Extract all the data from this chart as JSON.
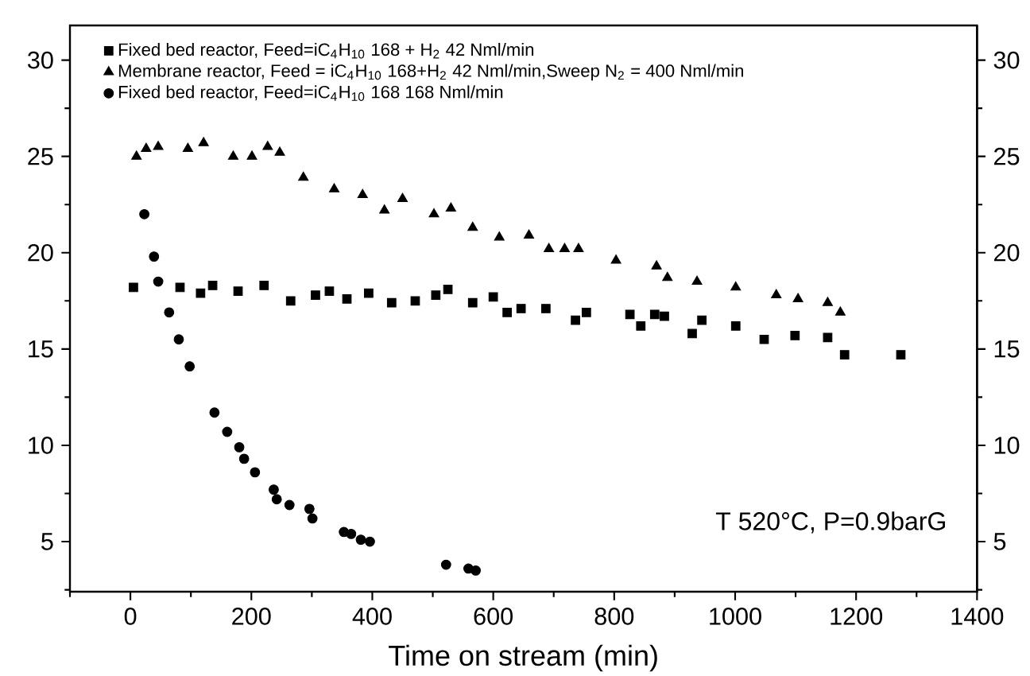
{
  "chart_data": {
    "type": "scatter",
    "xlabel": "Time on stream (min)",
    "xlim": [
      -100,
      1400
    ],
    "ylim": [
      2.4,
      31.8
    ],
    "y2lim": [
      2.4,
      31.8
    ],
    "xticks": [
      {
        "value": -100,
        "label": null
      },
      0,
      {
        "value": 100,
        "label": null
      },
      200,
      {
        "value": 300,
        "label": null
      },
      400,
      {
        "value": 500,
        "label": null
      },
      600,
      {
        "value": 700,
        "label": null
      },
      800,
      {
        "value": 900,
        "label": null
      },
      1000,
      {
        "value": 1100,
        "label": null
      },
      1200,
      {
        "value": 1300,
        "label": null
      },
      1400
    ],
    "yticks": [
      {
        "value": 2.5,
        "label": null
      },
      5,
      {
        "value": 7.5,
        "label": null
      },
      10,
      {
        "value": 12.5,
        "label": null
      },
      15,
      {
        "value": 17.5,
        "label": null
      },
      20,
      {
        "value": 22.5,
        "label": null
      },
      25,
      {
        "value": 27.5,
        "label": null
      },
      30
    ],
    "y2ticks": [
      {
        "value": 2.5,
        "label": null
      },
      5,
      {
        "value": 7.5,
        "label": null
      },
      10,
      {
        "value": 12.5,
        "label": null
      },
      15,
      {
        "value": 17.5,
        "label": null
      },
      20,
      {
        "value": 22.5,
        "label": null
      },
      25,
      {
        "value": 27.5,
        "label": null
      },
      30
    ],
    "legend": "top left",
    "grid": false,
    "annotations": [
      "T 520°C, P=0.9barG"
    ],
    "series": [
      {
        "name": "Fixed bed reactor, Feed=iC$_{4}$H$_{10}$ 168 + H$_{2}$ 42 Nml/min",
        "color": "#000000",
        "marker": "square",
        "x": [
          5,
          82,
          116,
          136,
          178,
          221,
          265,
          306,
          329,
          358,
          394,
          432,
          471,
          505,
          525,
          566,
          600,
          623,
          646,
          687,
          736,
          754,
          826,
          844,
          867,
          883,
          929,
          945,
          1001,
          1048,
          1099,
          1153,
          1181,
          1274
        ],
        "values": [
          18.2,
          18.2,
          17.9,
          18.3,
          18.0,
          18.3,
          17.5,
          17.8,
          18.0,
          17.6,
          17.9,
          17.4,
          17.5,
          17.8,
          18.1,
          17.4,
          17.7,
          16.9,
          17.1,
          17.1,
          16.5,
          16.9,
          16.8,
          16.2,
          16.8,
          16.7,
          15.8,
          16.5,
          16.2,
          15.5,
          15.7,
          15.6,
          14.7,
          14.7
        ]
      },
      {
        "name": "Membrane reactor, Feed = iC$_{4}$H$_{10}$ 168+H$_{2}$ 42 Nml/min,Sweep N$_{2}$ = 400 Nml/min",
        "color": "#000000",
        "marker": "triangle",
        "x": [
          10,
          26,
          46,
          95,
          121,
          170,
          201,
          227,
          247,
          286,
          337,
          384,
          420,
          450,
          502,
          530,
          566,
          610,
          659,
          692,
          718,
          741,
          803,
          870,
          888,
          937,
          1001,
          1068,
          1104,
          1153,
          1174
        ],
        "values": [
          25.0,
          25.4,
          25.5,
          25.4,
          25.7,
          25.0,
          25.0,
          25.5,
          25.2,
          23.9,
          23.3,
          23.0,
          22.2,
          22.8,
          22.0,
          22.3,
          21.3,
          20.8,
          20.9,
          20.2,
          20.2,
          20.2,
          19.6,
          19.3,
          18.7,
          18.5,
          18.2,
          17.8,
          17.6,
          17.4,
          16.9
        ]
      },
      {
        "name": "Fixed bed reactor, Feed=iC$_{4}$H$_{10}$ 168 168 Nml/min",
        "color": "#000000",
        "marker": "circle",
        "x": [
          23,
          39,
          46,
          64,
          80,
          98,
          139,
          160,
          180,
          188,
          206,
          237,
          242,
          263,
          296,
          301,
          353,
          365,
          381,
          396,
          522,
          559,
          571
        ],
        "values": [
          22.0,
          19.8,
          18.5,
          16.9,
          15.5,
          14.1,
          11.7,
          10.7,
          9.9,
          9.3,
          8.6,
          7.7,
          7.2,
          6.9,
          6.7,
          6.2,
          5.5,
          5.4,
          5.1,
          5.0,
          3.8,
          3.6,
          3.5
        ]
      }
    ]
  }
}
